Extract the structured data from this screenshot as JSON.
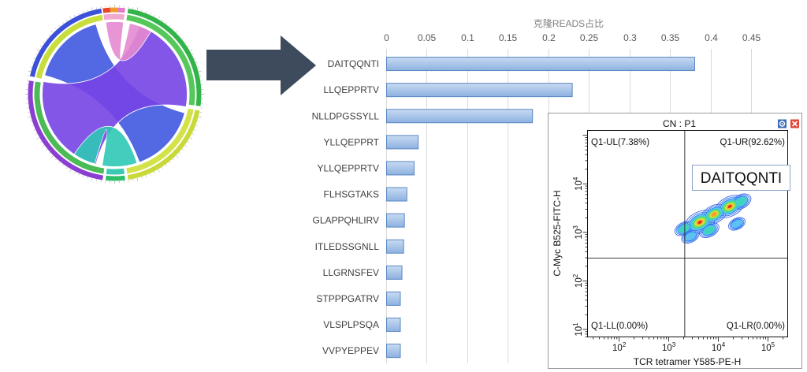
{
  "arrow": {
    "color": "#3e4b5d"
  },
  "chord_diagram": {
    "outer_ring_colors": [
      "#e8452c",
      "#f09a2c",
      "#e27ac5",
      "#33b44a",
      "#c9d93a",
      "#2fbf6a",
      "#8b3fd1",
      "#3b52d8"
    ],
    "inner_ring_colors": [
      "#f2a9cf",
      "#56c75a",
      "#d4e24a",
      "#3cc9b4",
      "#4bbb56",
      "#c8de3c"
    ],
    "ribbon_colors": [
      "#4058e0",
      "#7544e6",
      "#2fc8b6",
      "#e489cf"
    ],
    "tick_color": "#8a8a8a"
  },
  "flow_window": {
    "icons": [
      "gear-icon",
      "close-icon"
    ],
    "frame_color": "#9b9b9b",
    "gear_color": "#3d6db5",
    "close_color": "#e2463a",
    "note_border_color": "#8aa4c8"
  },
  "chart_data": [
    {
      "type": "bar",
      "orientation": "horizontal",
      "xlabel": "克隆READS占比",
      "xlim": [
        0,
        0.45
      ],
      "xticks": [
        "0",
        "0.05",
        "0.1",
        "0.15",
        "0.2",
        "0.25",
        "0.3",
        "0.35",
        "0.4",
        "0.45"
      ],
      "grid": true,
      "categories": [
        "DAITQQNTI",
        "LLQEPPRTV",
        "NLLDPGSSYLL",
        "YLLQEPPRT",
        "YLLQEPPRTV",
        "FLHSGTAKS",
        "GLAPPQHLIRV",
        "ITLEDSSGNLL",
        "LLGRNSFEV",
        "STPPPGATRV",
        "VLSPLPSQA",
        "VVPYEPPEV"
      ],
      "values": [
        0.38,
        0.229,
        0.18,
        0.039,
        0.034,
        0.025,
        0.022,
        0.021,
        0.019,
        0.017,
        0.017,
        0.017
      ],
      "bar_gradient": [
        "#c9dbf2",
        "#8cb1e0"
      ],
      "bar_edge_color": "#5b87c4",
      "grid_color": "#d9d9d9"
    },
    {
      "type": "scatter",
      "title": "CN : P1",
      "xlabel": "TCR tetramer Y585-PE-H",
      "ylabel": "C-Myc B525-FITC-H",
      "xscale": "log",
      "yscale": "log",
      "xlim": [
        23,
        250000
      ],
      "ylim": [
        7,
        126000
      ],
      "tick_base": "10",
      "xtick_exponents": [
        2,
        3,
        4,
        5
      ],
      "ytick_exponents": [
        1,
        2,
        3,
        4
      ],
      "quadrant_gate": {
        "x": 2100,
        "y": 295
      },
      "quadrants": [
        {
          "label": "Q1-UL(7.38%)",
          "percent": 7.38
        },
        {
          "label": "Q1-UR(92.62%)",
          "percent": 92.62
        },
        {
          "label": "Q1-LL(0.00%)",
          "percent": 0.0
        },
        {
          "label": "Q1-LR(0.00%)",
          "percent": 0.0
        }
      ],
      "annotation": "DAITQQNTI",
      "density_peaks": [
        {
          "x": 4230,
          "y": 1615,
          "level": 1.0
        },
        {
          "x": 16980,
          "y": 3412,
          "level": 0.9
        },
        {
          "x": 8170,
          "y": 2349,
          "level": 0.75
        },
        {
          "x": 6557,
          "y": 1111,
          "level": 0.4
        },
        {
          "x": 28350,
          "y": 4272,
          "level": 0.45
        },
        {
          "x": 2033,
          "y": 1198,
          "level": 0.35
        },
        {
          "x": 2725,
          "y": 824,
          "level": 0.3
        },
        {
          "x": 23600,
          "y": 1499,
          "level": 0.25
        }
      ],
      "density_colors": [
        "#3f63e6",
        "#2f7cf2",
        "#5fc0f2",
        "#3fd2c0",
        "#79db55",
        "#d9e43c",
        "#f5a02a",
        "#e3261b"
      ]
    }
  ]
}
